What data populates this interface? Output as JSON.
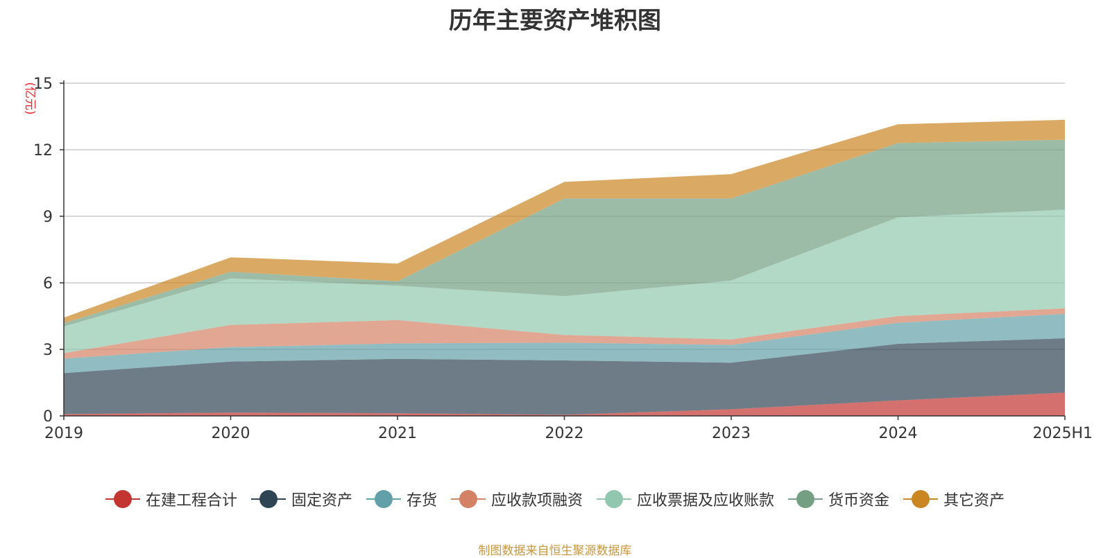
{
  "chart_data": {
    "type": "area",
    "stacked": true,
    "title": "历年主要资产堆积图",
    "ylabel": "(亿元)",
    "ylim": [
      0,
      15
    ],
    "yticks": [
      0,
      3,
      6,
      9,
      12,
      15
    ],
    "categories": [
      "2019",
      "2020",
      "2021",
      "2022",
      "2023",
      "2024",
      "2025H1"
    ],
    "grid": true,
    "legend_position": "bottom",
    "series": [
      {
        "name": "在建工程合计",
        "color": "#c23531",
        "values": [
          0.08,
          0.15,
          0.12,
          0.05,
          0.3,
          0.7,
          1.05
        ]
      },
      {
        "name": "固定资产",
        "color": "#2f4554",
        "values": [
          1.85,
          2.3,
          2.45,
          2.45,
          2.1,
          2.55,
          2.45
        ]
      },
      {
        "name": "存货",
        "color": "#61a0a8",
        "values": [
          0.65,
          0.65,
          0.7,
          0.8,
          0.8,
          0.95,
          1.1
        ]
      },
      {
        "name": "应收款项融资",
        "color": "#d48265",
        "values": [
          0.25,
          1.0,
          1.05,
          0.35,
          0.25,
          0.3,
          0.25
        ]
      },
      {
        "name": "应收票据及应收账款",
        "color": "#91c7ae",
        "values": [
          1.2,
          2.1,
          1.55,
          1.75,
          2.65,
          4.45,
          4.45
        ]
      },
      {
        "name": "货币资金",
        "color": "#749f83",
        "values": [
          0.15,
          0.3,
          0.2,
          4.4,
          3.7,
          3.35,
          3.15
        ]
      },
      {
        "name": "其它资产",
        "color": "#ca8622",
        "values": [
          0.25,
          0.65,
          0.8,
          0.75,
          1.1,
          0.85,
          0.9
        ]
      }
    ]
  },
  "source_note": "制图数据来自恒生聚源数据库"
}
